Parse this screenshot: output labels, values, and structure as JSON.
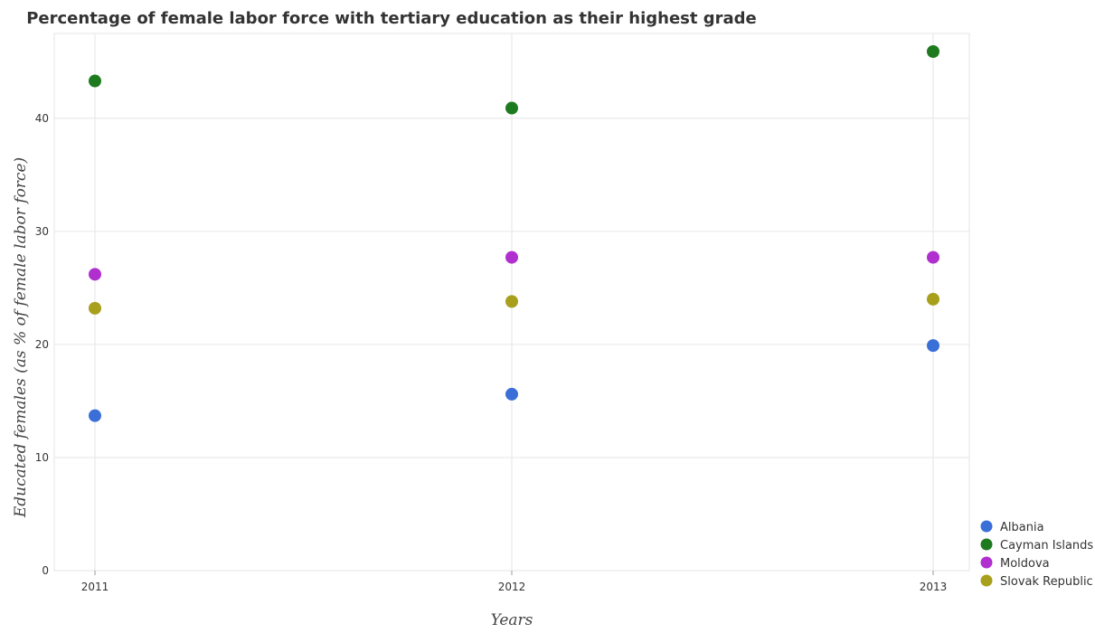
{
  "chart_data": {
    "type": "scatter",
    "title": "Percentage of female labor force with tertiary education as their highest grade",
    "xlabel": "Years",
    "ylabel": "Educated females (as % of female labor force)",
    "categories": [
      "2011",
      "2012",
      "2013"
    ],
    "ylim": [
      0,
      47.5
    ],
    "yticks": [
      0,
      10,
      20,
      30,
      40
    ],
    "yticklabels": [
      "0",
      "10",
      "20",
      "30",
      "40"
    ],
    "grid": true,
    "legend_position": "bottom-right",
    "series": [
      {
        "name": "Albania",
        "color": "#3a6fd8",
        "values": [
          13.7,
          15.6,
          19.9
        ]
      },
      {
        "name": "Cayman Islands",
        "color": "#1e7a1e",
        "values": [
          43.3,
          40.9,
          45.9
        ]
      },
      {
        "name": "Moldova",
        "color": "#b02fcf",
        "values": [
          26.2,
          27.7,
          27.7
        ]
      },
      {
        "name": "Slovak Republic",
        "color": "#a8a01c",
        "values": [
          23.2,
          23.8,
          24.0
        ]
      }
    ]
  }
}
